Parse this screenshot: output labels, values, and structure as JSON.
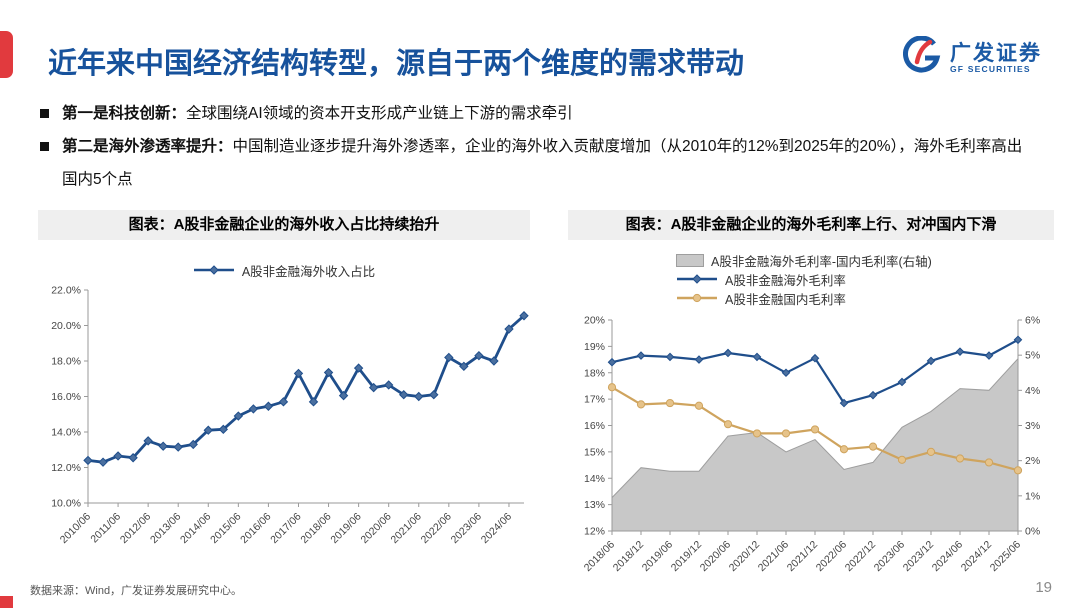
{
  "page": {
    "number": "19"
  },
  "header": {
    "title": "近年来中国经济结构转型，源自于两个维度的需求带动",
    "logo": {
      "cn": "广发证券",
      "en": "GF SECURITIES"
    }
  },
  "bullets": [
    {
      "lead": "第一是科技创新：",
      "text": "全球围绕AI领域的资本开支形成产业链上下游的需求牵引"
    },
    {
      "lead": "第二是海外渗透率提升：",
      "text": "中国制造业逐步提升海外渗透率，企业的海外收入贡献度增加（从2010年的12%到2025年的20%），海外毛利率高出国内5个点"
    }
  ],
  "footer": {
    "source": "数据来源：Wind，广发证券发展研究中心。"
  },
  "colors": {
    "title_blue": "#17529C",
    "accent_red": "#E13A3E",
    "logo_blue": "#1B5AA5",
    "line_blue": "#1F4E8B",
    "line_tan": "#CFA45E",
    "area_gray": "#C8C8C8",
    "header_bg": "#EFEFEF"
  },
  "chart_data": [
    {
      "type": "line",
      "title": "图表：A股非金融企业的海外收入占比持续抬升",
      "x": [
        "2010/06",
        "2010/12",
        "2011/06",
        "2011/12",
        "2012/06",
        "2012/12",
        "2013/06",
        "2013/12",
        "2014/06",
        "2014/12",
        "2015/06",
        "2015/12",
        "2016/06",
        "2016/12",
        "2017/06",
        "2017/12",
        "2018/06",
        "2018/12",
        "2019/06",
        "2019/12",
        "2020/06",
        "2020/12",
        "2021/06",
        "2021/12",
        "2022/06",
        "2022/12",
        "2023/06",
        "2023/12",
        "2024/06",
        "2024/12"
      ],
      "x_label_every": 2,
      "ylim": [
        10,
        22
      ],
      "y_ticks": [
        "22.0%",
        "20.0%",
        "18.0%",
        "16.0%",
        "14.0%",
        "12.0%",
        "10.0%"
      ],
      "grid": false,
      "legend_position": "top-center",
      "series": [
        {
          "name": "A股非金融海外收入占比",
          "color": "#1F4E8B",
          "marker": "diamond",
          "marker_fill": "#4A6F9F",
          "values": [
            12.4,
            12.3,
            12.65,
            12.55,
            13.5,
            13.2,
            13.15,
            13.3,
            14.1,
            14.15,
            14.9,
            15.3,
            15.45,
            15.7,
            17.3,
            15.7,
            17.35,
            16.05,
            17.6,
            16.5,
            16.65,
            16.1,
            16.0,
            16.1,
            18.2,
            17.7,
            18.3,
            18.0,
            19.8,
            20.55
          ]
        }
      ]
    },
    {
      "type": "line+area",
      "title": "图表：A股非金融企业的海外毛利率上行、对冲国内下滑",
      "x": [
        "2018/06",
        "2018/12",
        "2019/06",
        "2019/12",
        "2020/06",
        "2020/12",
        "2021/06",
        "2021/12",
        "2022/06",
        "2022/12",
        "2023/06",
        "2023/12",
        "2024/06",
        "2024/12",
        "2025/06"
      ],
      "x_label_every": 1,
      "ylim": [
        12,
        20
      ],
      "y_ticks": [
        "20%",
        "19%",
        "18%",
        "17%",
        "16%",
        "15%",
        "14%",
        "13%",
        "12%"
      ],
      "right_ylim": [
        0,
        6
      ],
      "right_y_ticks": [
        "6%",
        "5%",
        "4%",
        "3%",
        "2%",
        "1%",
        "0%"
      ],
      "grid": false,
      "legend_position": "top-left",
      "area_series": {
        "name": "A股非金融海外毛利率-国内毛利率(右轴)",
        "axis": "right",
        "color": "#C8C8C8",
        "edge": "#9E9E9E",
        "values": [
          0.95,
          1.8,
          1.7,
          1.7,
          2.7,
          2.8,
          2.25,
          2.6,
          1.75,
          1.95,
          2.95,
          3.4,
          4.05,
          4.0,
          4.9
        ]
      },
      "series": [
        {
          "name": "A股非金融海外毛利率",
          "color": "#1F4E8B",
          "marker": "diamond",
          "marker_fill": "#4A6F9F",
          "values": [
            18.4,
            18.65,
            18.6,
            18.5,
            18.75,
            18.6,
            18.0,
            18.55,
            16.85,
            17.15,
            17.65,
            18.45,
            18.8,
            18.65,
            19.25
          ]
        },
        {
          "name": "A股非金融国内毛利率",
          "color": "#CFA45E",
          "marker": "circle",
          "marker_fill": "#E6C38A",
          "values": [
            17.45,
            16.8,
            16.85,
            16.75,
            16.05,
            15.7,
            15.7,
            15.85,
            15.1,
            15.2,
            14.7,
            15.0,
            14.75,
            14.6,
            14.3
          ]
        }
      ]
    }
  ]
}
